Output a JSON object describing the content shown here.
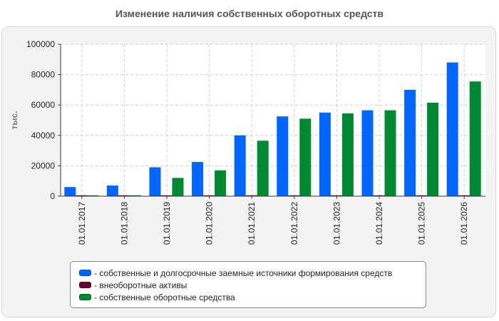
{
  "chart_data": {
    "type": "bar",
    "title": "Изменение наличия собственных оборотных средств",
    "ylabel": "тыс.",
    "ylim": [
      0,
      100000
    ],
    "yticks": [
      0,
      20000,
      40000,
      60000,
      80000,
      100000
    ],
    "grid": true,
    "legend_position": "bottom",
    "categories": [
      "01.01.2017",
      "01.01.2018",
      "01.01.2019",
      "01.01.2020",
      "01.01.2021",
      "01.01.2022",
      "01.01.2023",
      "01.01.2024",
      "01.01.2025",
      "01.01.2026"
    ],
    "series": [
      {
        "name": "- собственные и долгосрочные заемные источники формирования средств",
        "color": "#0066ff",
        "values": [
          6000,
          7000,
          19000,
          22500,
          40000,
          52500,
          55000,
          56500,
          70000,
          88000
        ]
      },
      {
        "name": "- внеоборотные активы",
        "color": "#660033",
        "values": [
          300,
          300,
          400,
          400,
          400,
          400,
          400,
          400,
          400,
          400
        ]
      },
      {
        "name": "- собственные оборотные средства",
        "color": "#008833",
        "values": [
          500,
          600,
          12000,
          17000,
          36500,
          51000,
          54500,
          56500,
          61500,
          75500
        ]
      }
    ]
  }
}
